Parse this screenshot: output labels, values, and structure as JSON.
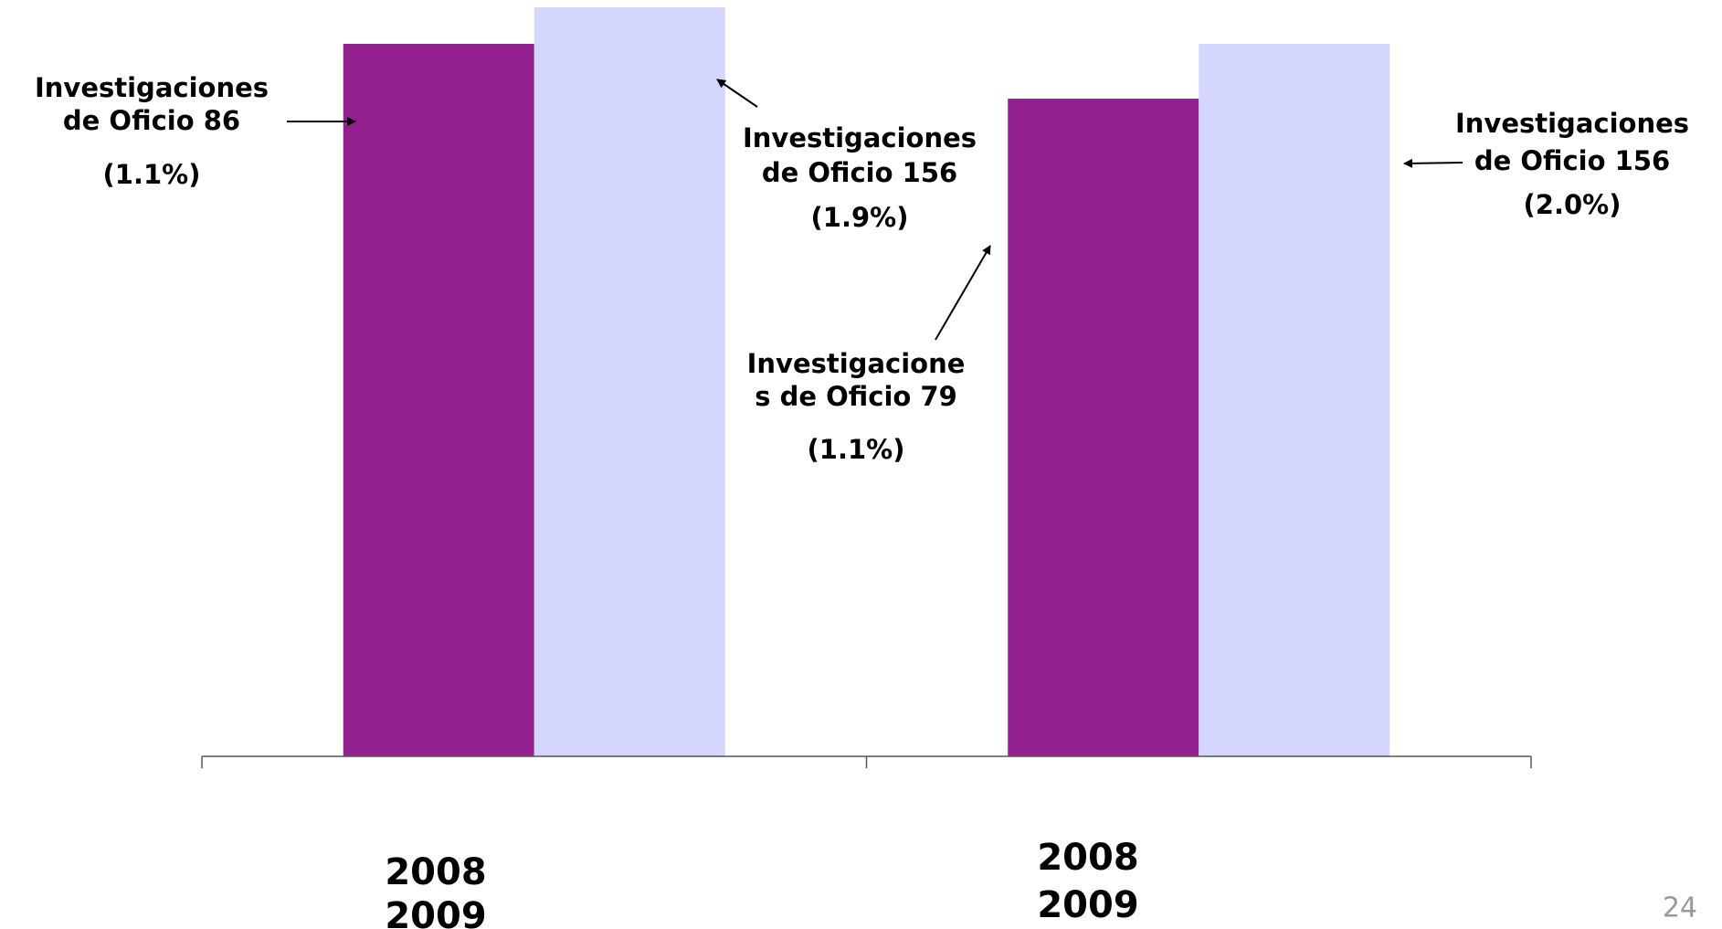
{
  "chart_data": {
    "type": "bar",
    "categories": [
      [
        "2008",
        "2009"
      ],
      [
        "2008",
        "2009"
      ]
    ],
    "series": [
      {
        "color": "#92208f",
        "values": [
          7800,
          7200
        ]
      },
      {
        "color": "#d4d6fe",
        "values": [
          8200,
          7800
        ]
      }
    ],
    "ylim": [
      0,
      8250
    ],
    "annotations": [
      [
        "Investigaciones",
        "de Oficio 86",
        "(1.1%)"
      ],
      [
        "Investigaciones",
        "de Oficio 156",
        "(1.9%)"
      ],
      [
        "Investigacione",
        "s de Oficio 79",
        "(1.1%)"
      ],
      [
        "Investigaciones",
        "de Oficio 156",
        "(2.0%)"
      ]
    ],
    "page_number": "24"
  }
}
